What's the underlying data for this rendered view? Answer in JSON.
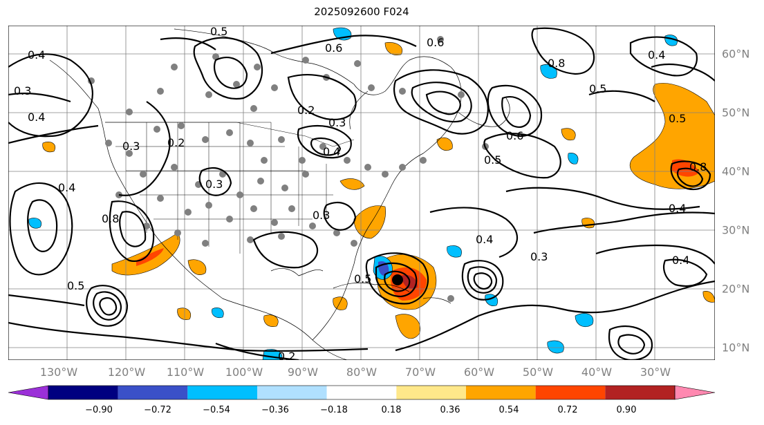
{
  "title": "2025092600 F024",
  "lon_labels": [
    "130°W",
    "120°W",
    "110°W",
    "100°W",
    "90°W",
    "80°W",
    "70°W",
    "60°W",
    "50°W",
    "40°W",
    "30°W"
  ],
  "lat_labels": [
    "60°N",
    "50°N",
    "40°N",
    "30°N",
    "20°N",
    "10°N"
  ],
  "colorbar": {
    "ticks": [
      "−0.90",
      "−0.72",
      "−0.54",
      "−0.36",
      "−0.18",
      "0.18",
      "0.36",
      "0.54",
      "0.72",
      "0.90"
    ],
    "colors": [
      "#9b30d8",
      "#000080",
      "#3a50c8",
      "#00bfff",
      "#b0e0ff",
      "#ffffff",
      "#ffe88a",
      "#ffa500",
      "#ff4500",
      "#b22222",
      "#ff88b0"
    ]
  },
  "contour_labels": [
    "0.5",
    "0.6",
    "0.4",
    "0.3",
    "0.4",
    "0.2",
    "0.3",
    "0.4",
    "0.3",
    "0.4",
    "0.6",
    "0.8",
    "0.5",
    "0.5",
    "0.6",
    "0.8",
    "0.5",
    "0.4",
    "0.3",
    "0.4",
    "0.2",
    "0.3",
    "0.3",
    "0.4",
    "0.8",
    "0.5",
    "0.5",
    "0.4",
    "0.2"
  ]
}
